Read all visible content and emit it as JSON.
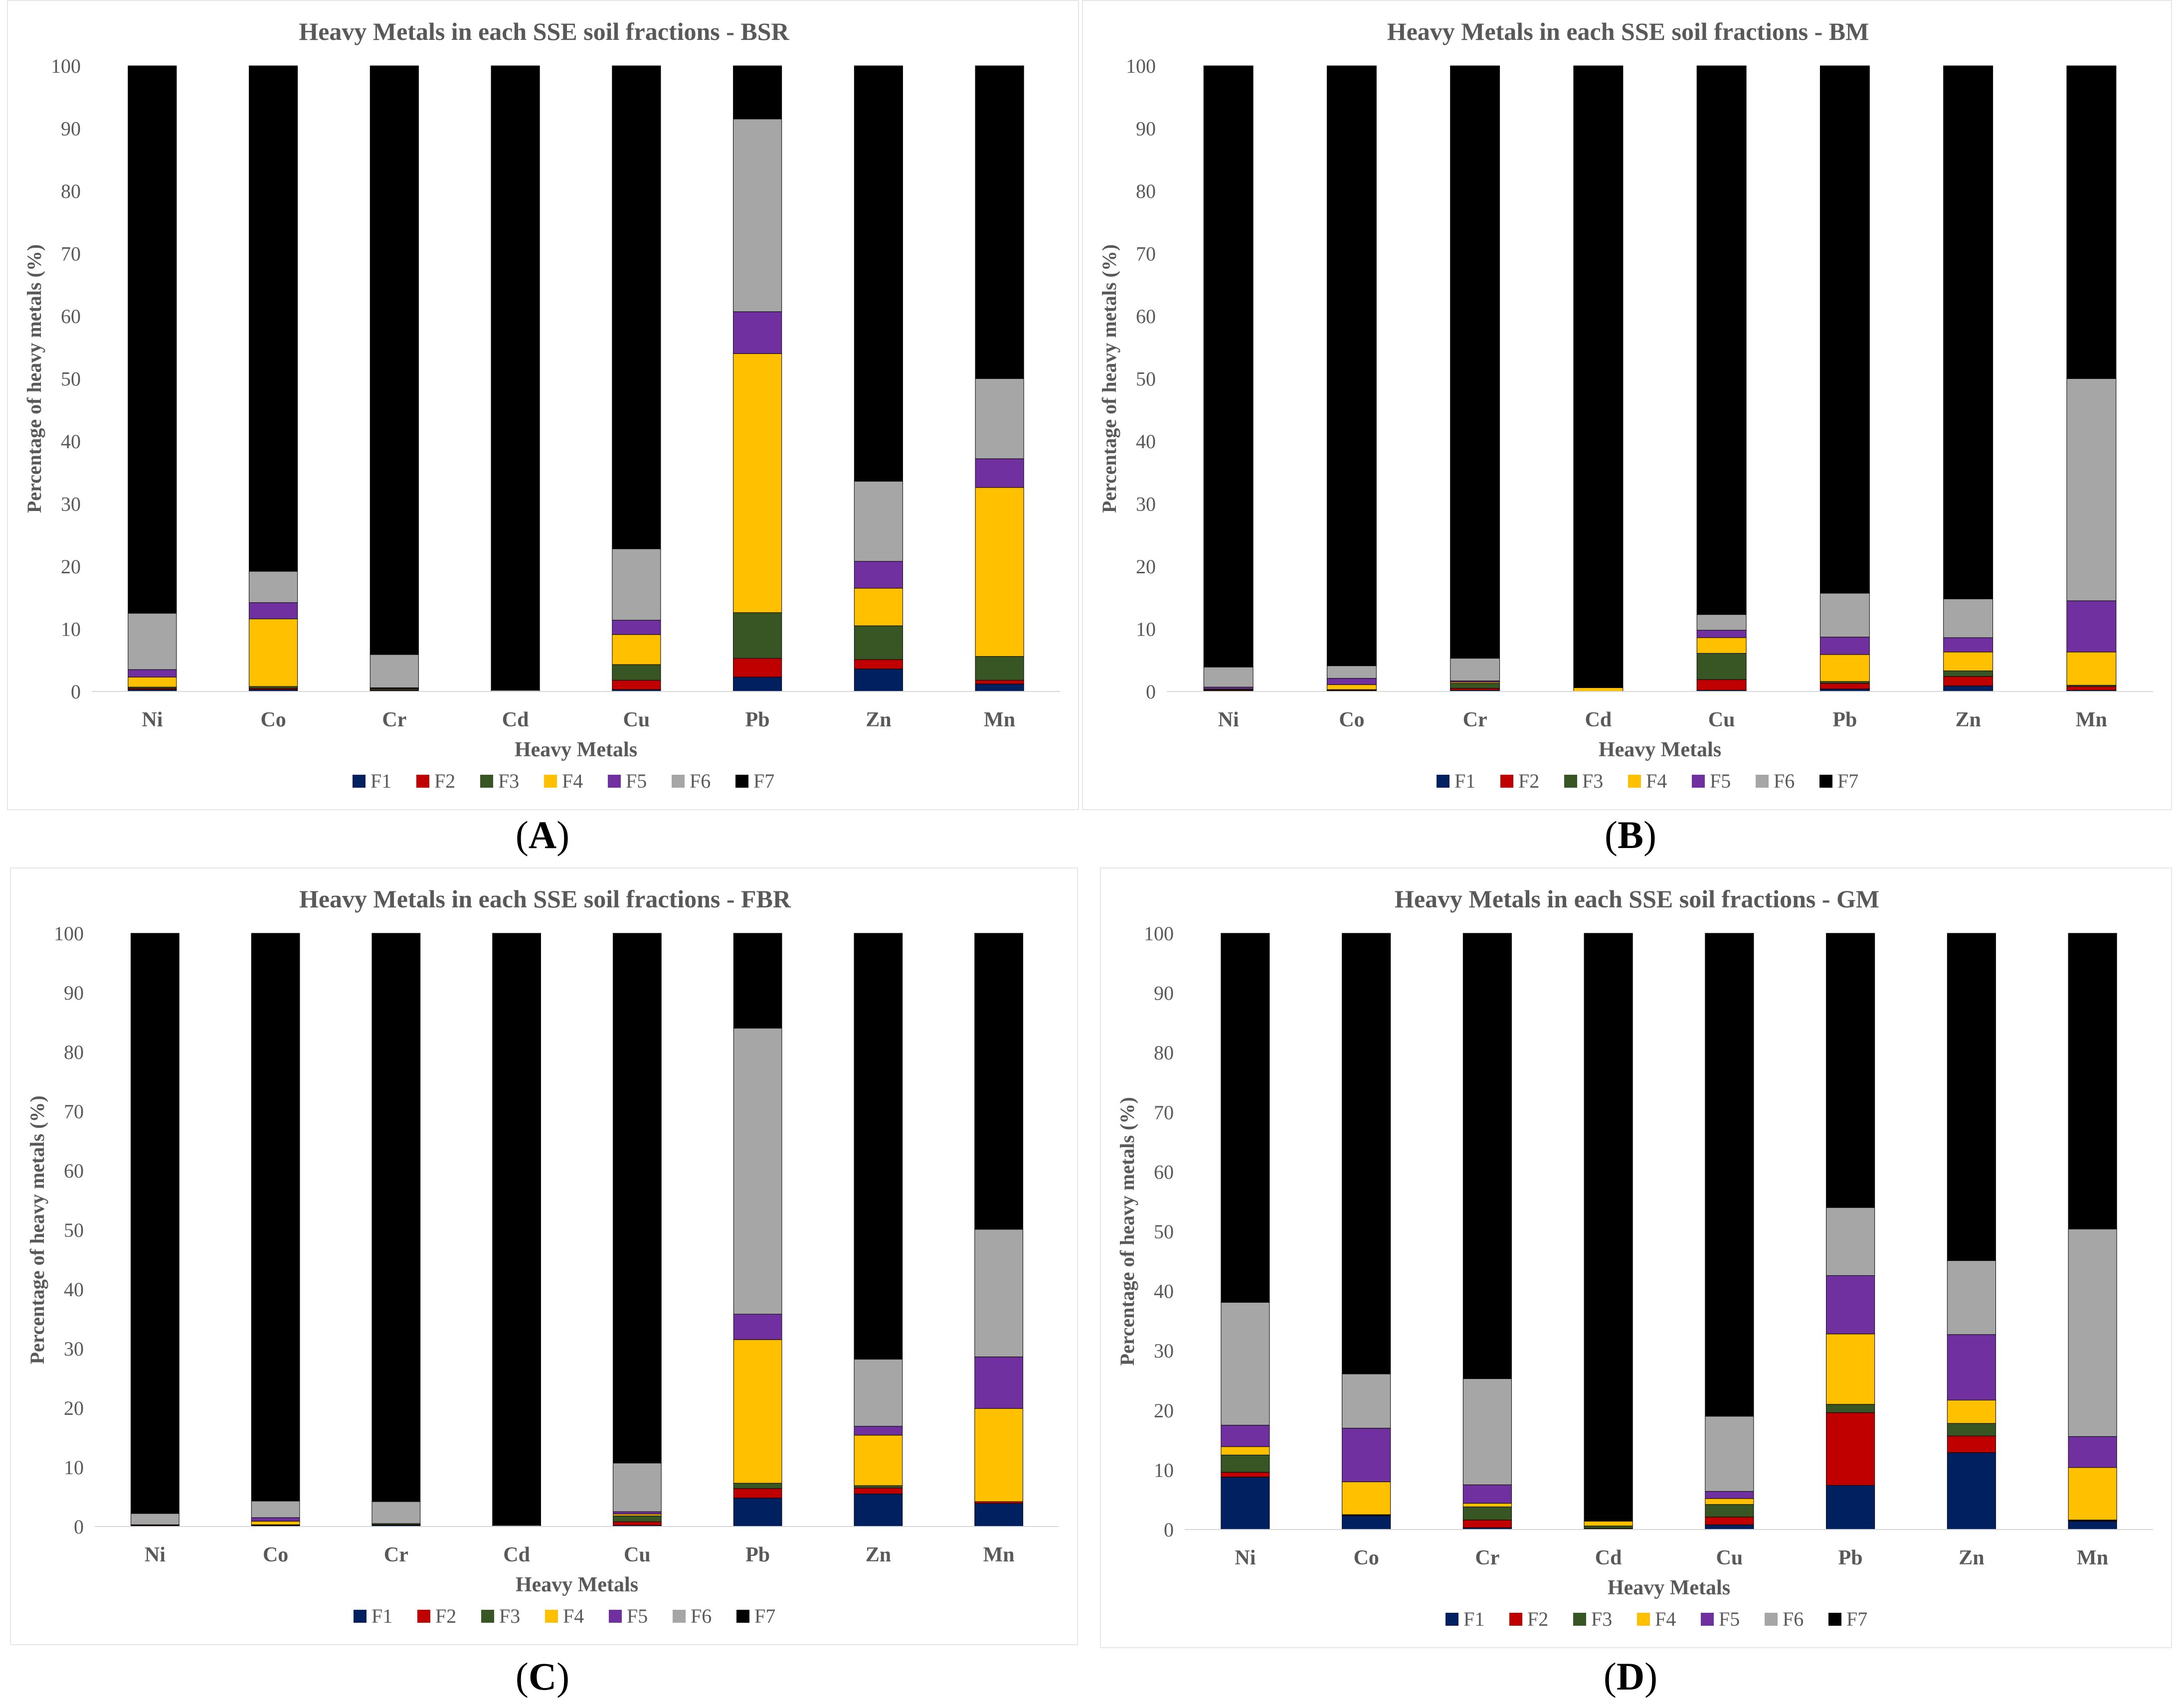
{
  "chart_data": [
    {
      "type": "bar",
      "stacked": true,
      "title": "Heavy Metals in each SSE soil fractions - BSR",
      "panel_label": "A",
      "xlabel": "Heavy Metals",
      "ylabel": "Percentage of heavy metals (%)",
      "ylim": [
        0,
        100
      ],
      "yticks": [
        0,
        10,
        20,
        30,
        40,
        50,
        60,
        70,
        80,
        90,
        100
      ],
      "grid": false,
      "legend": "bottom",
      "categories": [
        "Ni",
        "Co",
        "Cr",
        "Cd",
        "Cu",
        "Pb",
        "Zn",
        "Mn"
      ],
      "series": [
        {
          "name": "F1",
          "color": "#002060",
          "values": [
            0.3,
            0.3,
            0.1,
            0.0,
            0.3,
            2.3,
            3.6,
            1.2
          ]
        },
        {
          "name": "F2",
          "color": "#c00000",
          "values": [
            0.2,
            0.2,
            0.1,
            0.0,
            1.5,
            3.0,
            1.5,
            0.6
          ]
        },
        {
          "name": "F3",
          "color": "#375623",
          "values": [
            0.2,
            0.3,
            0.2,
            0.0,
            2.5,
            7.3,
            5.4,
            3.8
          ]
        },
        {
          "name": "F4",
          "color": "#ffc000",
          "values": [
            1.6,
            10.8,
            0.1,
            0.0,
            4.8,
            41.4,
            6.0,
            27.0
          ]
        },
        {
          "name": "F5",
          "color": "#7030a0",
          "values": [
            1.2,
            2.6,
            0.1,
            0.0,
            2.3,
            6.7,
            4.3,
            4.6
          ]
        },
        {
          "name": "F6",
          "color": "#a6a6a6",
          "values": [
            9.0,
            5.0,
            5.3,
            0.2,
            11.4,
            30.8,
            12.8,
            12.8
          ]
        },
        {
          "name": "F7",
          "color": "#000000",
          "values": [
            87.5,
            80.8,
            94.1,
            99.8,
            77.2,
            8.5,
            66.4,
            50.0
          ]
        }
      ]
    },
    {
      "type": "bar",
      "stacked": true,
      "title": "Heavy Metals in each SSE soil fractions - BM",
      "panel_label": "B",
      "xlabel": "Heavy Metals",
      "ylabel": "Percentage of heavy metals (%)",
      "ylim": [
        0,
        100
      ],
      "yticks": [
        0,
        10,
        20,
        30,
        40,
        50,
        60,
        70,
        80,
        90,
        100
      ],
      "grid": false,
      "legend": "bottom",
      "categories": [
        "Ni",
        "Co",
        "Cr",
        "Cd",
        "Cu",
        "Pb",
        "Zn",
        "Mn"
      ],
      "series": [
        {
          "name": "F1",
          "color": "#002060",
          "values": [
            0.1,
            0.1,
            0.2,
            0.0,
            0.2,
            0.4,
            0.9,
            0.2
          ]
        },
        {
          "name": "F2",
          "color": "#c00000",
          "values": [
            0.1,
            0.1,
            0.3,
            0.0,
            1.7,
            0.9,
            1.5,
            0.6
          ]
        },
        {
          "name": "F3",
          "color": "#375623",
          "values": [
            0.1,
            0.1,
            0.8,
            0.0,
            4.2,
            0.3,
            0.9,
            0.2
          ]
        },
        {
          "name": "F4",
          "color": "#ffc000",
          "values": [
            0.1,
            0.8,
            0.2,
            0.6,
            2.5,
            4.3,
            3.0,
            5.3
          ]
        },
        {
          "name": "F5",
          "color": "#7030a0",
          "values": [
            0.3,
            1.0,
            0.2,
            0.0,
            1.2,
            2.8,
            2.3,
            8.2
          ]
        },
        {
          "name": "F6",
          "color": "#a6a6a6",
          "values": [
            3.2,
            2.0,
            3.6,
            0.0,
            2.5,
            7.0,
            6.2,
            35.5
          ]
        },
        {
          "name": "F7",
          "color": "#000000",
          "values": [
            96.1,
            95.9,
            94.7,
            99.4,
            87.7,
            84.3,
            85.2,
            50.0
          ]
        }
      ]
    },
    {
      "type": "bar",
      "stacked": true,
      "title": "Heavy Metals in each SSE soil fractions - FBR",
      "panel_label": "C",
      "xlabel": "Heavy Metals",
      "ylabel": "Percentage of heavy metals (%)",
      "ylim": [
        0,
        100
      ],
      "yticks": [
        0,
        10,
        20,
        30,
        40,
        50,
        60,
        70,
        80,
        90,
        100
      ],
      "grid": false,
      "legend": "bottom",
      "categories": [
        "Ni",
        "Co",
        "Cr",
        "Cd",
        "Cu",
        "Pb",
        "Zn",
        "Mn"
      ],
      "series": [
        {
          "name": "F1",
          "color": "#002060",
          "values": [
            0.1,
            0.1,
            0.2,
            0.0,
            0.2,
            4.8,
            5.5,
            3.9
          ]
        },
        {
          "name": "F2",
          "color": "#c00000",
          "values": [
            0.1,
            0.1,
            0.1,
            0.0,
            0.6,
            1.6,
            1.0,
            0.3
          ]
        },
        {
          "name": "F3",
          "color": "#375623",
          "values": [
            0.1,
            0.1,
            0.2,
            0.0,
            1.0,
            0.9,
            0.4,
            0.0
          ]
        },
        {
          "name": "F4",
          "color": "#ffc000",
          "values": [
            0.0,
            0.6,
            0.0,
            0.0,
            0.3,
            24.2,
            8.5,
            15.7
          ]
        },
        {
          "name": "F5",
          "color": "#7030a0",
          "values": [
            0.0,
            0.6,
            0.0,
            0.0,
            0.4,
            4.3,
            1.5,
            8.7
          ]
        },
        {
          "name": "F6",
          "color": "#a6a6a6",
          "values": [
            1.9,
            2.8,
            3.7,
            0.2,
            8.2,
            48.2,
            11.3,
            21.5
          ]
        },
        {
          "name": "F7",
          "color": "#000000",
          "values": [
            97.8,
            95.7,
            95.8,
            99.8,
            89.3,
            16.0,
            71.8,
            49.9
          ]
        }
      ]
    },
    {
      "type": "bar",
      "stacked": true,
      "title": "Heavy Metals in each SSE soil fractions - GM",
      "panel_label": "D",
      "xlabel": "Heavy Metals",
      "ylabel": "Percentage of heavy metals (%)",
      "ylim": [
        0,
        100
      ],
      "yticks": [
        0,
        10,
        20,
        30,
        40,
        50,
        60,
        70,
        80,
        90,
        100
      ],
      "grid": false,
      "legend": "bottom",
      "categories": [
        "Ni",
        "Co",
        "Cr",
        "Cd",
        "Cu",
        "Pb",
        "Zn",
        "Mn"
      ],
      "series": [
        {
          "name": "F1",
          "color": "#002060",
          "values": [
            8.8,
            2.3,
            0.3,
            0.1,
            0.8,
            7.4,
            12.9,
            1.4
          ]
        },
        {
          "name": "F2",
          "color": "#c00000",
          "values": [
            0.8,
            0.1,
            1.3,
            0.1,
            1.3,
            12.2,
            2.8,
            0.1
          ]
        },
        {
          "name": "F3",
          "color": "#375623",
          "values": [
            2.9,
            0.1,
            2.2,
            0.4,
            2.1,
            1.4,
            2.1,
            0.1
          ]
        },
        {
          "name": "F4",
          "color": "#ffc000",
          "values": [
            1.4,
            5.5,
            0.6,
            0.8,
            1.0,
            11.8,
            3.9,
            8.8
          ]
        },
        {
          "name": "F5",
          "color": "#7030a0",
          "values": [
            3.6,
            9.0,
            3.1,
            0.1,
            1.2,
            9.8,
            11.0,
            5.2
          ]
        },
        {
          "name": "F6",
          "color": "#a6a6a6",
          "values": [
            20.6,
            9.1,
            17.8,
            0.1,
            12.6,
            11.4,
            12.4,
            34.8
          ]
        },
        {
          "name": "F7",
          "color": "#000000",
          "values": [
            61.9,
            73.9,
            74.7,
            98.4,
            81.0,
            46.0,
            54.9,
            49.6
          ]
        }
      ]
    }
  ]
}
